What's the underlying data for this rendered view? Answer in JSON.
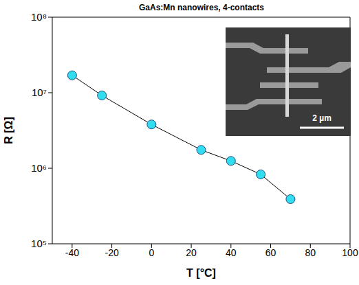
{
  "chart_data": {
    "type": "line",
    "title": "GaAs:Mn nanowires,  4-contacts",
    "x_label": "T [°C]",
    "y_label": "R [Ω]",
    "x": [
      -40,
      -25,
      0,
      25,
      40,
      55,
      70
    ],
    "values": [
      17000000,
      9200000,
      3800000,
      1750000,
      1250000,
      830000,
      390000
    ],
    "color": "#33ddf0",
    "marker": "circle",
    "line_style": "solid",
    "log": "y",
    "xlim": [
      -50,
      100
    ],
    "xticks": [
      -40,
      -20,
      0,
      20,
      40,
      60,
      80,
      100
    ],
    "ylim": [
      100000,
      100000000
    ],
    "yticks": [
      {
        "value": 100000,
        "label": "10⁵"
      },
      {
        "value": 1000000,
        "label": "10⁶"
      },
      {
        "value": 10000000,
        "label": "10⁷"
      },
      {
        "value": 100000000,
        "label": "10⁸"
      }
    ],
    "grid": false,
    "annotations": [
      "2 µm"
    ]
  }
}
